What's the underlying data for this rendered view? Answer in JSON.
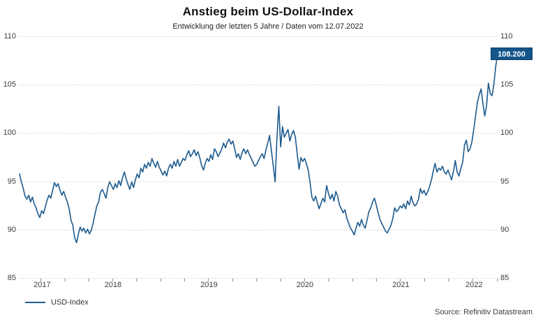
{
  "header": {
    "title": "Anstieg beim US-Dollar-Index",
    "subtitle": "Entwicklung der letzten 5 Jahre / Daten vom 12.07.2022"
  },
  "footer": {
    "source": "Source: Refinitiv Datastream"
  },
  "legend": {
    "label": "USD-Index"
  },
  "last_value_label": "108.200",
  "colors": {
    "line": "#1c5a8e",
    "badge_bg": "#14568c",
    "badge_border": "#0e3d64",
    "badge_text": "#ffffff",
    "grid": "#c8c8c8",
    "tick": "#8c8c8c",
    "axis_text": "#3d3d3d"
  },
  "chart_data": {
    "type": "line",
    "title": "Anstieg beim US-Dollar-Index",
    "subtitle": "Entwicklung der letzten 5 Jahre / Daten vom 12.07.2022",
    "ylabel": "USD-Index",
    "ylim": [
      85,
      110
    ],
    "yticks": [
      85,
      90,
      95,
      100,
      105,
      110
    ],
    "grid": "horizontal-dotted",
    "legend_position": "bottom-left",
    "x_unit": "weeks since 12.07.2017 (5 Jahre, bis 12.07.2022)",
    "x_domain_weeks": [
      0,
      260
    ],
    "x_year_labels": [
      {
        "label": "2017",
        "center_week": 12.3
      },
      {
        "label": "2018",
        "center_week": 50.8
      },
      {
        "label": "2019",
        "center_week": 103.0
      },
      {
        "label": "2020",
        "center_week": 155.2
      },
      {
        "label": "2021",
        "center_week": 207.4
      },
      {
        "label": "2022",
        "center_week": 247.2
      }
    ],
    "x_ticks_weeks": [
      11.6,
      24.7,
      37.6,
      50.6,
      63.7,
      76.9,
      89.7,
      102.7,
      115.9,
      129.0,
      142.0,
      155.0,
      168.1,
      181.3,
      194.1,
      207.1,
      220.3,
      233.4,
      246.3,
      260.0
    ],
    "last_value": 108.2,
    "series": [
      {
        "name": "USD-Index",
        "interval": "weekly",
        "values": [
          95.8,
          95.0,
          94.3,
          93.5,
          93.2,
          93.6,
          92.9,
          93.4,
          92.7,
          92.3,
          91.7,
          91.3,
          92.0,
          91.7,
          92.4,
          93.1,
          93.6,
          93.3,
          94.1,
          94.9,
          94.5,
          94.8,
          94.1,
          93.6,
          94.0,
          93.4,
          92.9,
          92.2,
          91.0,
          90.5,
          89.2,
          88.7,
          89.6,
          90.3,
          89.9,
          90.2,
          89.7,
          90.1,
          89.6,
          90.0,
          90.7,
          91.6,
          92.5,
          92.9,
          93.9,
          94.2,
          93.8,
          93.3,
          94.4,
          95.0,
          94.6,
          94.2,
          94.8,
          94.4,
          95.1,
          94.6,
          95.4,
          96.0,
          95.3,
          94.7,
          94.2,
          95.0,
          94.4,
          95.2,
          95.8,
          95.4,
          96.4,
          96.0,
          96.8,
          96.4,
          97.0,
          96.6,
          97.4,
          96.9,
          96.5,
          97.1,
          96.5,
          96.1,
          95.7,
          96.1,
          95.6,
          96.4,
          96.8,
          96.4,
          97.1,
          96.6,
          97.3,
          96.6,
          97.0,
          97.4,
          97.2,
          97.8,
          98.2,
          97.6,
          97.9,
          98.3,
          97.7,
          98.1,
          97.5,
          96.7,
          96.2,
          96.9,
          97.4,
          97.1,
          97.8,
          97.3,
          98.4,
          98.1,
          97.6,
          98.0,
          98.4,
          99.0,
          98.5,
          99.1,
          99.4,
          98.9,
          99.2,
          98.4,
          97.5,
          97.9,
          97.3,
          98.0,
          98.4,
          97.9,
          98.3,
          97.8,
          97.4,
          97.0,
          96.6,
          96.8,
          97.2,
          97.6,
          97.9,
          97.4,
          98.3,
          99.0,
          99.8,
          98.2,
          96.6,
          95.0,
          99.5,
          102.8,
          98.6,
          100.7,
          99.6,
          100.0,
          100.4,
          99.2,
          99.9,
          100.3,
          99.6,
          97.9,
          96.3,
          97.5,
          97.1,
          97.4,
          96.9,
          96.2,
          94.9,
          93.4,
          93.0,
          93.5,
          92.8,
          92.2,
          92.8,
          93.3,
          92.9,
          94.6,
          93.8,
          93.2,
          93.7,
          93.0,
          94.0,
          93.5,
          92.6,
          92.2,
          91.8,
          92.1,
          91.2,
          90.7,
          90.2,
          89.9,
          89.5,
          90.2,
          90.8,
          90.4,
          91.1,
          90.5,
          90.2,
          91.0,
          91.9,
          92.3,
          92.9,
          93.3,
          92.6,
          91.8,
          91.1,
          90.7,
          90.3,
          89.9,
          89.7,
          90.1,
          90.5,
          91.2,
          92.3,
          91.9,
          92.1,
          92.5,
          92.3,
          92.7,
          92.2,
          93.0,
          92.6,
          93.5,
          92.8,
          92.5,
          92.7,
          93.2,
          94.3,
          93.8,
          94.1,
          93.6,
          94.0,
          94.5,
          95.2,
          96.1,
          96.9,
          96.0,
          96.4,
          96.2,
          96.6,
          96.0,
          95.8,
          96.2,
          95.7,
          95.2,
          96.1,
          97.2,
          96.0,
          95.6,
          96.4,
          97.0,
          98.8,
          99.3,
          98.1,
          98.4,
          99.1,
          100.4,
          101.8,
          103.2,
          104.0,
          104.6,
          103.1,
          101.8,
          102.9,
          105.2,
          104.1,
          103.9,
          105.1,
          107.0,
          108.2
        ]
      }
    ]
  }
}
